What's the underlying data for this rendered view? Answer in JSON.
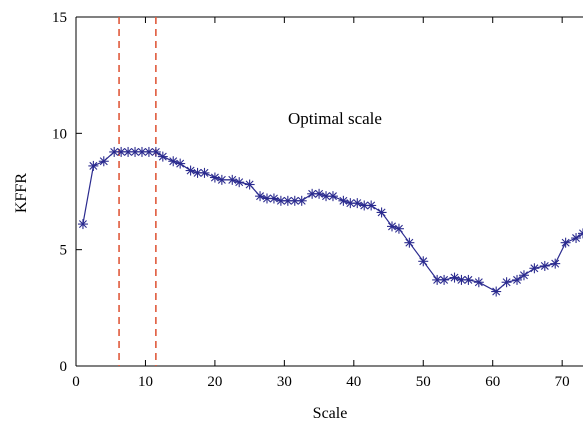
{
  "chart_data": {
    "type": "line",
    "title": "",
    "xlabel": "Scale",
    "ylabel": "KFFR",
    "xlim": [
      0,
      73
    ],
    "ylim": [
      0,
      15
    ],
    "xticks": [
      0,
      10,
      20,
      30,
      40,
      50,
      60,
      70
    ],
    "yticks": [
      0,
      5,
      10,
      15
    ],
    "grid": false,
    "annotation": "Optimal scale",
    "reference_lines_x": [
      6.2,
      11.5
    ],
    "colors": {
      "series": "#2b2b8f",
      "reference": "#e05a3c",
      "axis": "#000000"
    },
    "marker": "asterisk",
    "series": [
      {
        "x": [
          1,
          2.5,
          4,
          5.5,
          6.5,
          7.5,
          8.5,
          9.5,
          10.5,
          11.5,
          12.5,
          14,
          15,
          16.5,
          17.5,
          18.5,
          20,
          21,
          22.5,
          23.5,
          25,
          26.5,
          27.5,
          28.5,
          29.5,
          30.5,
          31.5,
          32.5,
          34,
          35,
          36,
          37,
          38.5,
          39.5,
          40.5,
          41.5,
          42.5,
          44,
          45.5,
          46.5,
          48,
          50,
          52,
          53,
          54.5,
          55.5,
          56.5,
          58,
          60.5,
          62,
          63.5,
          64.5,
          66,
          67.5,
          69,
          70.5,
          72,
          73
        ],
        "values": [
          6.1,
          8.6,
          8.8,
          9.2,
          9.2,
          9.2,
          9.2,
          9.2,
          9.2,
          9.2,
          9.0,
          8.8,
          8.7,
          8.4,
          8.3,
          8.3,
          8.1,
          8.0,
          8.0,
          7.9,
          7.8,
          7.3,
          7.2,
          7.2,
          7.1,
          7.1,
          7.1,
          7.1,
          7.4,
          7.4,
          7.3,
          7.3,
          7.1,
          7.0,
          7.0,
          6.9,
          6.9,
          6.6,
          6.0,
          5.9,
          5.3,
          4.5,
          3.7,
          3.7,
          3.8,
          3.7,
          3.7,
          3.6,
          3.2,
          3.6,
          3.7,
          3.9,
          4.2,
          4.3,
          4.4,
          5.3,
          5.5,
          5.7
        ]
      }
    ]
  }
}
